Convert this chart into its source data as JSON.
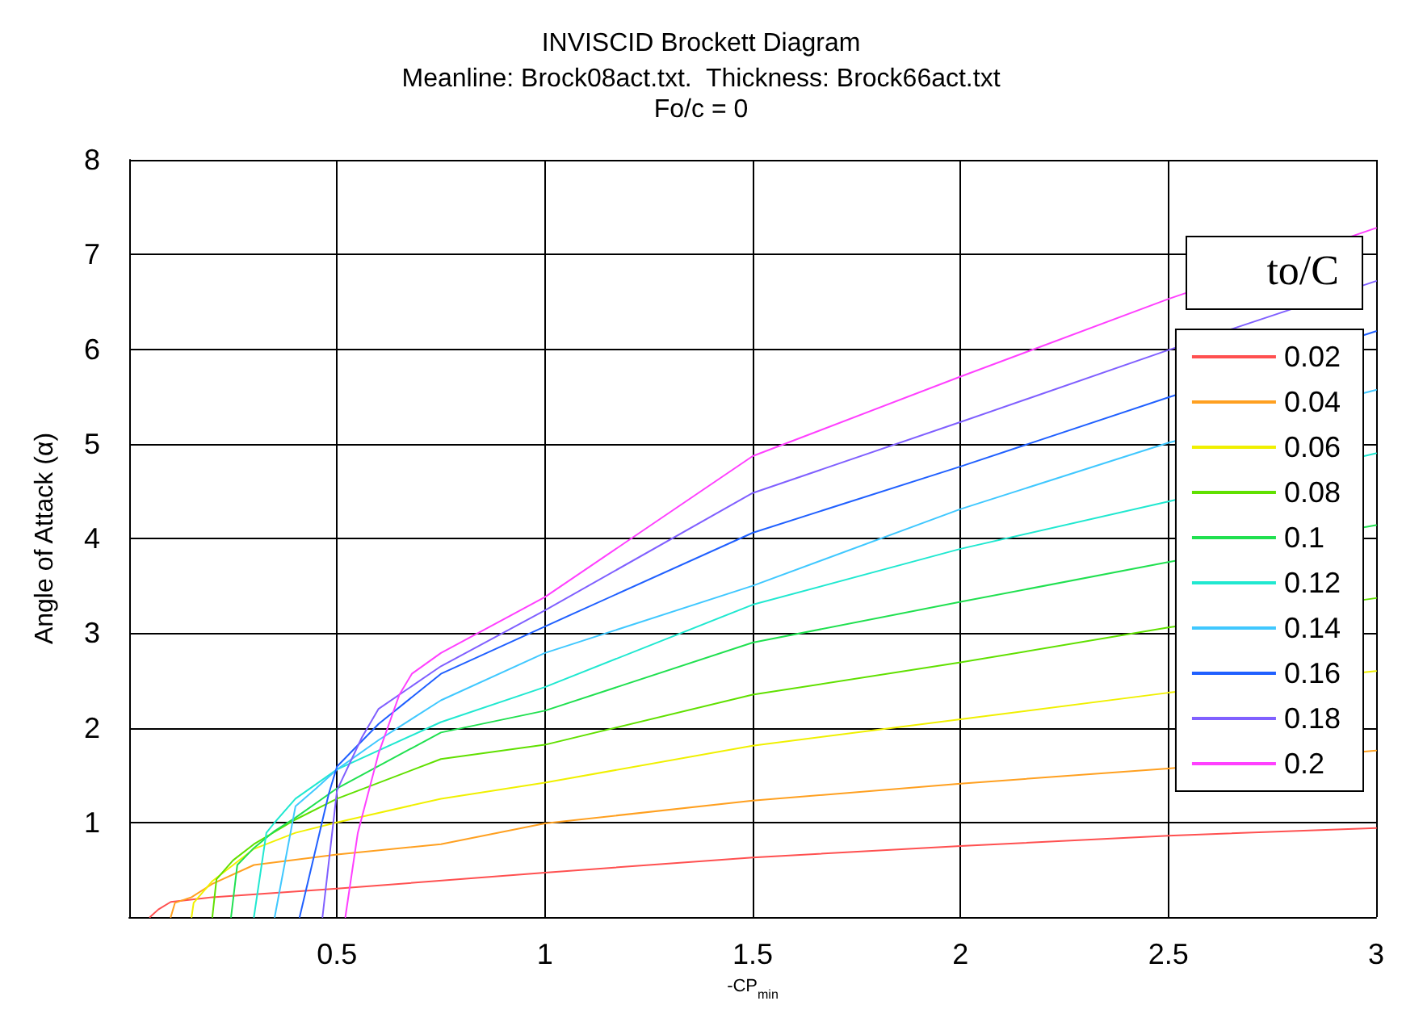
{
  "chart_data": {
    "type": "line",
    "title": "INVISCID Brockett Diagram",
    "subtitle": "Meanline: Brock08act.txt.  Thickness: Brock66act.txt",
    "annotations": [
      "Fo/c = 0"
    ],
    "xlabel": "-CP$_{min}$",
    "ylabel": "Angle of Attack (α)",
    "legend_title": "to/C",
    "legend": "right",
    "grid": true,
    "marker": "none",
    "line_style": "solid",
    "xlim": [
      0,
      3
    ],
    "xticks": [
      {
        "value": 0,
        "label": null
      },
      0.5,
      1,
      1.5,
      2,
      2.5,
      3
    ],
    "ylim": [
      0,
      8
    ],
    "yticks": [
      {
        "value": 0,
        "label": null
      },
      1,
      2,
      3,
      4,
      5,
      6,
      7,
      8
    ],
    "series": [
      {
        "name": "0.02",
        "color": "#ff5050",
        "x": [
          0.05,
          0.07,
          0.1,
          0.2,
          0.5,
          1.0,
          1.5,
          2.0,
          2.5,
          3.0
        ],
        "values": [
          0,
          0.08,
          0.16,
          0.21,
          0.3,
          0.47,
          0.63,
          0.75,
          0.86,
          0.94
        ]
      },
      {
        "name": "0.04",
        "color": "#ffa020",
        "x": [
          0.1,
          0.11,
          0.15,
          0.2,
          0.3,
          0.5,
          0.75,
          1.0,
          1.5,
          2.0,
          2.5,
          3.0
        ],
        "values": [
          0,
          0.15,
          0.21,
          0.35,
          0.55,
          0.66,
          0.77,
          0.99,
          1.23,
          1.41,
          1.57,
          1.76
        ]
      },
      {
        "name": "0.06",
        "color": "#f0f000",
        "x": [
          0.15,
          0.155,
          0.2,
          0.3,
          0.4,
          0.5,
          0.75,
          1.0,
          1.5,
          2.0,
          2.5,
          3.0
        ],
        "values": [
          0,
          0.15,
          0.38,
          0.72,
          0.89,
          1.0,
          1.25,
          1.42,
          1.81,
          2.09,
          2.37,
          2.6
        ]
      },
      {
        "name": "0.08",
        "color": "#60e000",
        "x": [
          0.2,
          0.21,
          0.25,
          0.3,
          0.4,
          0.5,
          0.75,
          1.0,
          1.5,
          2.0,
          2.5,
          3.0
        ],
        "values": [
          0,
          0.4,
          0.6,
          0.77,
          1.03,
          1.25,
          1.67,
          1.82,
          2.35,
          2.69,
          3.06,
          3.37
        ]
      },
      {
        "name": "0.1",
        "color": "#20e050",
        "x": [
          0.245,
          0.26,
          0.3,
          0.35,
          0.4,
          0.5,
          0.75,
          1.0,
          1.5,
          2.0,
          2.5,
          3.0
        ],
        "values": [
          0,
          0.55,
          0.73,
          0.91,
          1.05,
          1.36,
          1.95,
          2.18,
          2.9,
          3.33,
          3.75,
          4.14
        ]
      },
      {
        "name": "0.12",
        "color": "#20e8d0",
        "x": [
          0.3,
          0.33,
          0.35,
          0.4,
          0.5,
          0.75,
          1.0,
          1.5,
          2.0,
          2.5,
          3.0
        ],
        "values": [
          0,
          0.89,
          1.0,
          1.25,
          1.56,
          2.06,
          2.43,
          3.3,
          3.89,
          4.39,
          4.9
        ]
      },
      {
        "name": "0.14",
        "color": "#40c8ff",
        "x": [
          0.35,
          0.4,
          0.45,
          0.5,
          0.6,
          0.75,
          1.0,
          1.5,
          2.0,
          2.5,
          3.0
        ],
        "values": [
          0,
          1.17,
          1.36,
          1.56,
          1.87,
          2.29,
          2.79,
          3.5,
          4.31,
          5.01,
          5.57
        ]
      },
      {
        "name": "0.16",
        "color": "#2060ff",
        "x": [
          0.41,
          0.48,
          0.5,
          0.6,
          0.75,
          1.0,
          1.5,
          2.0,
          2.5,
          3.0
        ],
        "values": [
          0,
          1.3,
          1.59,
          2.04,
          2.57,
          3.07,
          4.06,
          4.76,
          5.49,
          6.19
        ]
      },
      {
        "name": "0.18",
        "color": "#8060ff",
        "x": [
          0.465,
          0.5,
          0.56,
          0.6,
          0.75,
          1.0,
          1.5,
          2.0,
          2.5,
          3.0
        ],
        "values": [
          0,
          1.34,
          1.9,
          2.2,
          2.65,
          3.24,
          4.48,
          5.23,
          5.99,
          6.72
        ]
      },
      {
        "name": "0.2",
        "color": "#ff40ff",
        "x": [
          0.52,
          0.55,
          0.6,
          0.65,
          0.68,
          0.75,
          1.0,
          1.5,
          2.0,
          2.5,
          3.0
        ],
        "values": [
          0,
          0.89,
          1.73,
          2.35,
          2.57,
          2.79,
          3.38,
          4.87,
          5.71,
          6.53,
          7.28
        ]
      }
    ]
  }
}
